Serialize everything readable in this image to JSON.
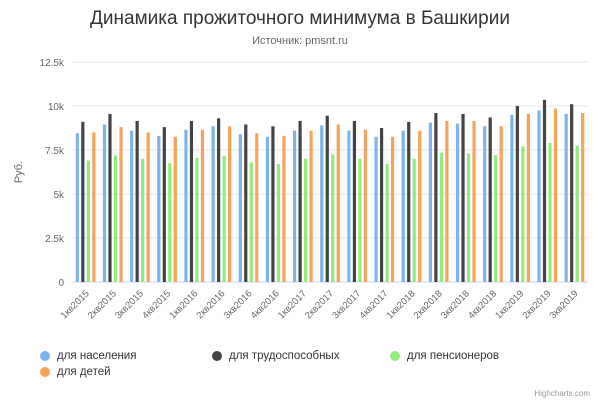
{
  "chart_data": {
    "type": "bar",
    "title": "Динамика прожиточного минимума в Башкирии",
    "subtitle": "Источник: pmsnt.ru",
    "ylabel": "Руб.",
    "xlabel": "",
    "ylim": [
      0,
      12500
    ],
    "yticks": [
      "0",
      "2.5k",
      "5k",
      "7.5k",
      "10k",
      "12.5k"
    ],
    "grid": true,
    "legend_position": "bottom",
    "categories": [
      "1кв2015",
      "2кв2015",
      "3кв2015",
      "4кв2015",
      "1кв2016",
      "2кв2016",
      "3кв2016",
      "4кв2016",
      "1кв2017",
      "2кв2017",
      "3кв2017",
      "4кв2017",
      "1кв2018",
      "2кв2018",
      "3кв2018",
      "4кв2018",
      "1кв2019",
      "2кв2019",
      "3кв2019"
    ],
    "series": [
      {
        "name": "для населения",
        "color": "#7cb5ec",
        "values": [
          8450,
          8950,
          8600,
          8300,
          8650,
          8850,
          8400,
          8250,
          8600,
          8900,
          8600,
          8250,
          8600,
          9050,
          9000,
          8850,
          9500,
          9750,
          9550
        ]
      },
      {
        "name": "для трудоспособных",
        "color": "#434348",
        "values": [
          9100,
          9550,
          9150,
          8800,
          9150,
          9300,
          8950,
          8850,
          9150,
          9450,
          9150,
          8750,
          9100,
          9600,
          9550,
          9350,
          10000,
          10350,
          10100
        ]
      },
      {
        "name": "для пенсионеров",
        "color": "#90ed7d",
        "values": [
          6900,
          7200,
          7000,
          6750,
          7050,
          7150,
          6800,
          6700,
          7000,
          7250,
          7000,
          6700,
          7000,
          7350,
          7300,
          7200,
          7700,
          7900,
          7750
        ]
      },
      {
        "name": "для детей",
        "color": "#f7a35c",
        "values": [
          8500,
          8800,
          8500,
          8250,
          8650,
          8850,
          8450,
          8300,
          8600,
          8950,
          8650,
          8250,
          8600,
          9150,
          9150,
          8850,
          9550,
          9850,
          9600
        ]
      }
    ]
  },
  "credits": "Highcharts.com"
}
